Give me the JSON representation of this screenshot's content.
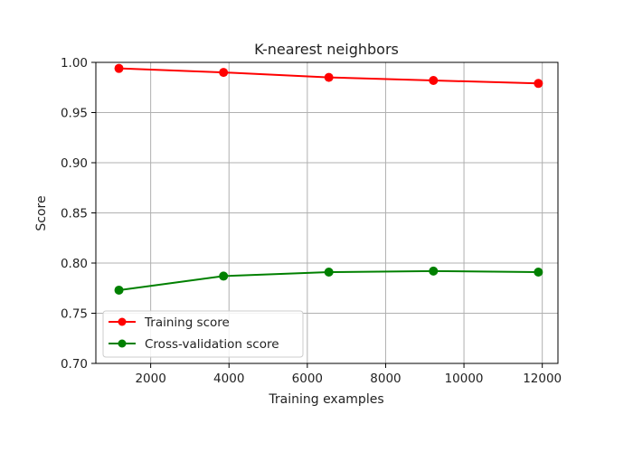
{
  "chart_data": {
    "type": "line",
    "title": "K-nearest neighbors",
    "xlabel": "Training examples",
    "ylabel": "Score",
    "xlim": [
      600,
      12400
    ],
    "ylim": [
      0.7,
      1.0
    ],
    "xticks": [
      2000,
      4000,
      6000,
      8000,
      10000,
      12000
    ],
    "xtick_labels": [
      "2000",
      "4000",
      "6000",
      "8000",
      "10000",
      "12000"
    ],
    "yticks": [
      0.7,
      0.75,
      0.8,
      0.85,
      0.9,
      0.95,
      1.0
    ],
    "ytick_labels": [
      "0.70",
      "0.75",
      "0.80",
      "0.85",
      "0.90",
      "0.95",
      "1.00"
    ],
    "grid": true,
    "legend_position": "lower-left",
    "x": [
      1190,
      3860,
      6550,
      9220,
      11900
    ],
    "series": [
      {
        "name": "Training score",
        "color": "#ff0000",
        "values": [
          0.994,
          0.99,
          0.985,
          0.982,
          0.979
        ]
      },
      {
        "name": "Cross-validation score",
        "color": "#008000",
        "values": [
          0.773,
          0.787,
          0.791,
          0.792,
          0.791
        ]
      }
    ]
  }
}
